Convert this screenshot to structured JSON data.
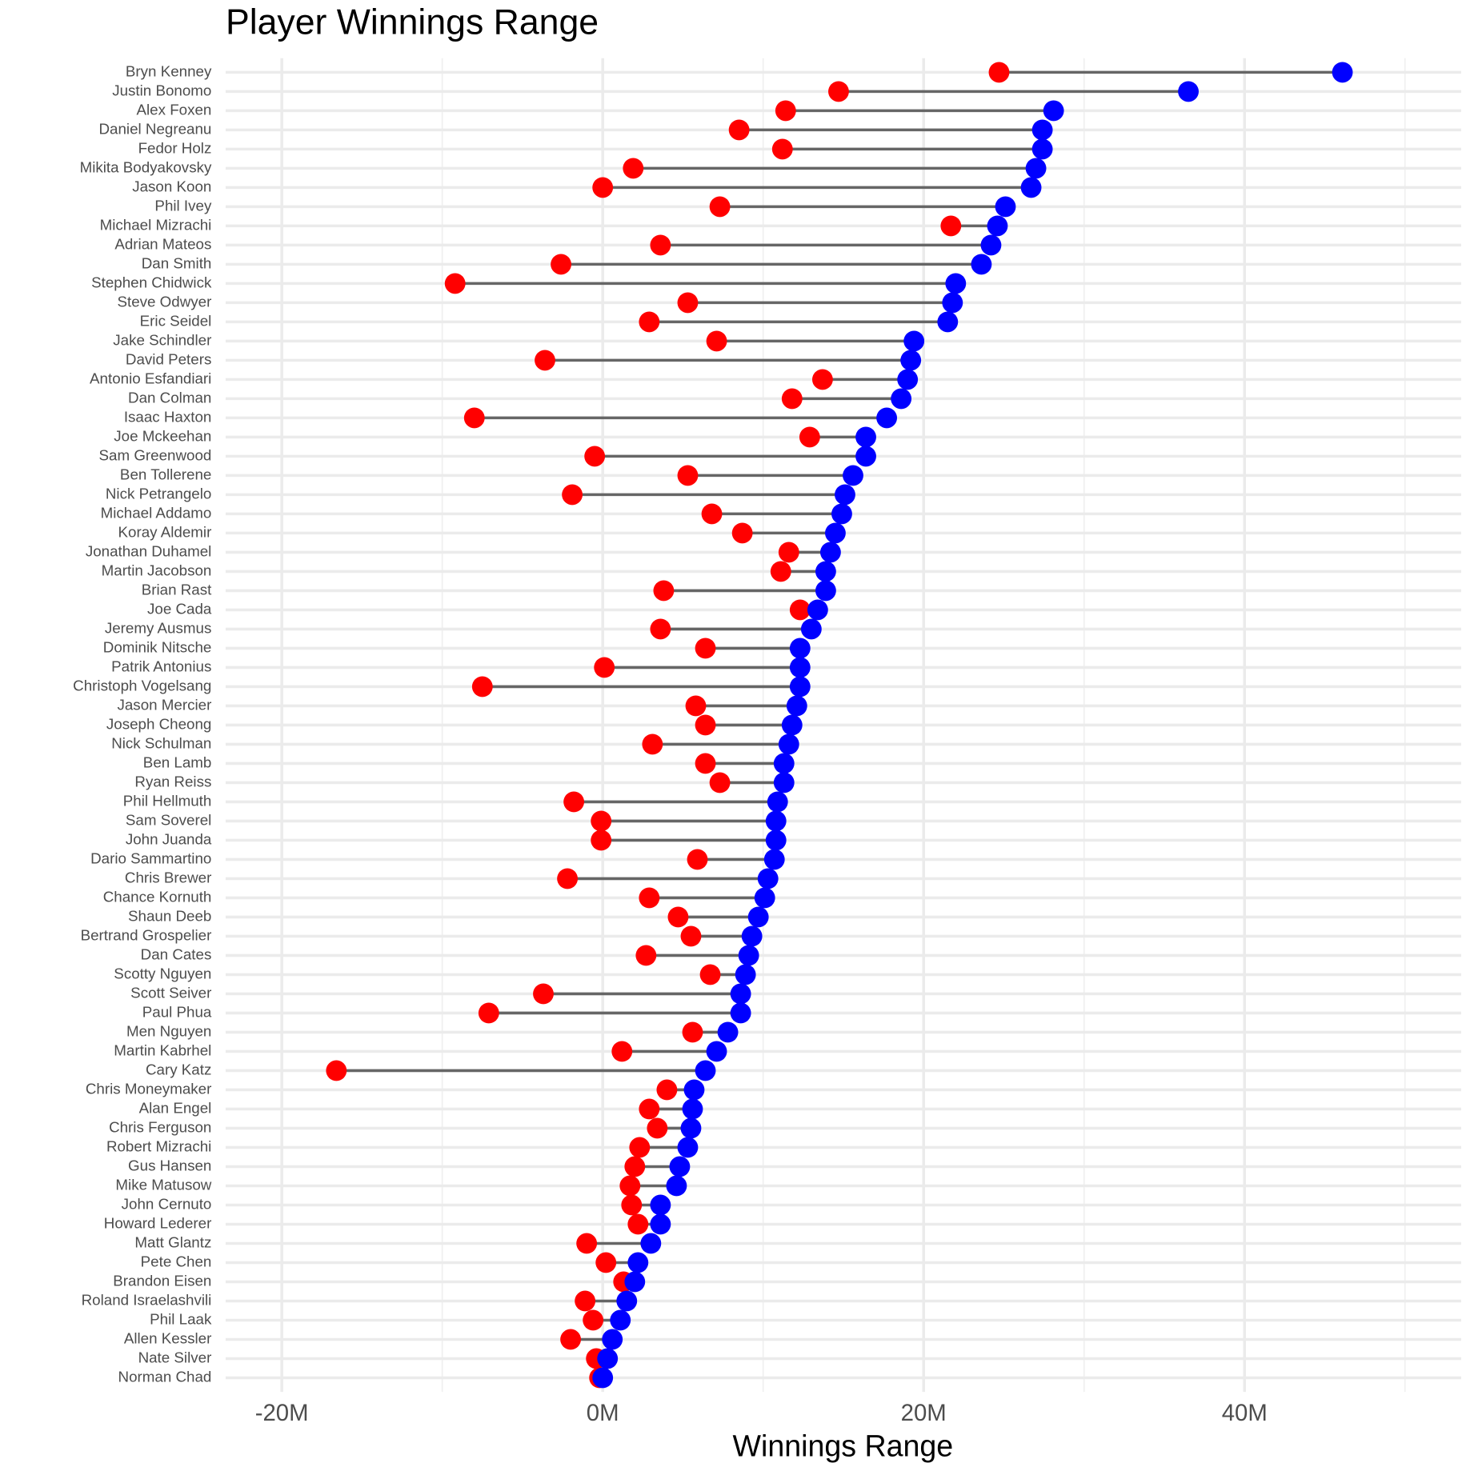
{
  "chart_data": {
    "type": "dumbbell",
    "title": "Player Winnings Range",
    "x_label": "Winnings Range",
    "categories": [
      "Bryn Kenney",
      "Justin Bonomo",
      "Alex Foxen",
      "Daniel Negreanu",
      "Fedor Holz",
      "Mikita Bodyakovsky",
      "Jason Koon",
      "Phil Ivey",
      "Michael Mizrachi",
      "Adrian Mateos",
      "Dan Smith",
      "Stephen Chidwick",
      "Steve Odwyer",
      "Eric Seidel",
      "Jake Schindler",
      "David Peters",
      "Antonio Esfandiari",
      "Dan Colman",
      "Isaac Haxton",
      "Joe Mckeehan",
      "Sam Greenwood",
      "Ben Tollerene",
      "Nick Petrangelo",
      "Michael Addamo",
      "Koray Aldemir",
      "Jonathan Duhamel",
      "Martin Jacobson",
      "Brian Rast",
      "Joe Cada",
      "Jeremy Ausmus",
      "Dominik Nitsche",
      "Patrik Antonius",
      "Christoph Vogelsang",
      "Jason Mercier",
      "Joseph Cheong",
      "Nick Schulman",
      "Ben Lamb",
      "Ryan Reiss",
      "Phil Hellmuth",
      "Sam Soverel",
      "John Juanda",
      "Dario Sammartino",
      "Chris Brewer",
      "Chance Kornuth",
      "Shaun Deeb",
      "Bertrand Grospelier",
      "Dan Cates",
      "Scotty Nguyen",
      "Scott Seiver",
      "Paul Phua",
      "Men Nguyen",
      "Martin Kabrhel",
      "Cary Katz",
      "Chris Moneymaker",
      "Alan Engel",
      "Chris Ferguson",
      "Robert Mizrachi",
      "Gus Hansen",
      "Mike Matusow",
      "John Cernuto",
      "Howard Lederer",
      "Matt Glantz",
      "Pete Chen",
      "Brandon Eisen",
      "Roland Israelashvili",
      "Phil Laak",
      "Allen Kessler",
      "Nate Silver",
      "Norman Chad"
    ],
    "series": [
      {
        "color": "#ff0000",
        "values": [
          24.7,
          14.7,
          11.4,
          8.5,
          11.2,
          1.9,
          0,
          7.3,
          21.7,
          3.6,
          -2.6,
          -9.2,
          5.3,
          2.9,
          7.1,
          -3.6,
          13.7,
          11.8,
          -8.0,
          12.9,
          -0.5,
          5.3,
          -1.9,
          6.8,
          8.7,
          11.6,
          11.1,
          3.8,
          12.3,
          3.6,
          6.4,
          0.1,
          -7.5,
          5.8,
          6.4,
          3.1,
          6.4,
          7.3,
          -1.8,
          -0.1,
          -0.1,
          5.9,
          -2.2,
          2.9,
          4.7,
          5.5,
          2.7,
          6.7,
          -3.7,
          -7.1,
          5.6,
          1.2,
          -16.6,
          4.0,
          2.9,
          3.4,
          2.3,
          2.0,
          1.7,
          1.8,
          2.2,
          -1.0,
          0.2,
          1.3,
          -1.1,
          -0.6,
          -2.0,
          -0.4,
          -0.2
        ]
      },
      {
        "color": "#0000ff",
        "values": [
          46.1,
          36.5,
          28.1,
          27.4,
          27.4,
          27.0,
          26.7,
          25.1,
          24.6,
          24.2,
          23.6,
          22.0,
          21.8,
          21.5,
          19.4,
          19.2,
          19.0,
          18.6,
          17.7,
          16.4,
          16.4,
          15.6,
          15.1,
          14.9,
          14.5,
          14.2,
          13.9,
          13.9,
          13.4,
          13.0,
          12.3,
          12.3,
          12.3,
          12.1,
          11.8,
          11.6,
          11.3,
          11.3,
          10.9,
          10.8,
          10.8,
          10.7,
          10.3,
          10.1,
          9.7,
          9.3,
          9.1,
          8.9,
          8.6,
          8.6,
          7.8,
          7.1,
          6.4,
          5.7,
          5.6,
          5.5,
          5.3,
          4.8,
          4.6,
          3.6,
          3.6,
          3.0,
          2.2,
          2.0,
          1.5,
          1.1,
          0.6,
          0.3,
          0.0
        ]
      }
    ],
    "segment_color": "#666666",
    "xlim": [
      -23.5,
      53.5
    ],
    "xticks": [
      {
        "value": -20,
        "label": "-20M"
      },
      {
        "value": 0,
        "label": "0M"
      },
      {
        "value": 20,
        "label": "20M"
      },
      {
        "value": 40,
        "label": "40M"
      }
    ],
    "minor_xticks": [
      -10,
      10,
      30,
      50
    ],
    "grid": true
  }
}
